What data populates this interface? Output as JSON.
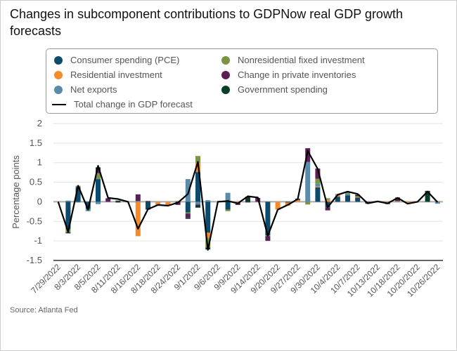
{
  "title": "Changes in subcomponent contributions to GDPNow real GDP growth forecasts",
  "source": "Source: Atlanta Fed",
  "chart_data": {
    "type": "bar",
    "stacked": true,
    "title": "Changes in subcomponent contributions to GDPNow real GDP growth forecasts",
    "xlabel": "",
    "ylabel": "Percentage points",
    "ylim": [
      -1.5,
      2
    ],
    "yticks": [
      2,
      1.5,
      1,
      0.5,
      0,
      -0.5,
      -1,
      -1.5
    ],
    "yticklabels": [
      "2",
      "1.5",
      "1",
      "0.5",
      "0",
      "-0.5",
      "-1",
      "-1.5"
    ],
    "grid": true,
    "legend_position": "top",
    "categories": [
      "7/29/2022",
      "",
      "8/3/2022",
      "",
      "8/5/2022",
      "",
      "8/11/2022",
      "",
      "8/16/2022",
      "",
      "8/18/2022",
      "",
      "8/24/2022",
      "",
      "9/1/2022",
      "",
      "9/6/2022",
      "",
      "9/9/2022",
      "",
      "9/14/2022",
      "",
      "9/20/2022",
      "",
      "9/27/2022",
      "",
      "9/30/2022",
      "",
      "10/4/2022",
      "",
      "10/7/2022",
      "",
      "10/13/2022",
      "",
      "10/18/2022",
      "",
      "10/20/2022",
      "",
      "10/26/2022"
    ],
    "series": [
      {
        "name": "Consumer spending (PCE)",
        "color": "#0e4a6b",
        "values": [
          0,
          -0.7,
          0.38,
          -0.18,
          0.58,
          0,
          0,
          0,
          0,
          -0.2,
          0,
          0,
          0,
          -0.27,
          0.76,
          -0.79,
          0,
          -0.2,
          0,
          0,
          0,
          -0.86,
          0,
          -0.02,
          0,
          0,
          0.37,
          -0.15,
          0.13,
          0.16,
          0.11,
          0,
          0,
          0,
          0,
          0,
          0,
          0,
          0
        ]
      },
      {
        "name": "Residential investment",
        "color": "#f58a2a",
        "values": [
          0,
          0,
          0.02,
          0,
          0,
          0,
          0,
          0,
          -0.88,
          0,
          -0.08,
          -0.1,
          0,
          0,
          0.23,
          -0.13,
          0,
          0,
          -0.02,
          0,
          0,
          0,
          -0.2,
          -0.08,
          0.03,
          0,
          0.02,
          0.05,
          0.05,
          0,
          0.03,
          0,
          0,
          -0.02,
          0,
          -0.04,
          0,
          0,
          0.02
        ]
      },
      {
        "name": "Net exports",
        "color": "#5a8ba8",
        "values": [
          0,
          0.03,
          -0.02,
          -0.06,
          -0.06,
          0,
          0,
          0,
          0.02,
          0,
          0,
          0,
          0,
          0.58,
          -0.07,
          0.04,
          0,
          0.23,
          0,
          0,
          0,
          0,
          0,
          0,
          0,
          1.02,
          0.07,
          0,
          0.02,
          0.05,
          0,
          0,
          0,
          -0.01,
          0,
          0,
          0,
          0,
          -0.05
        ]
      },
      {
        "name": "Nonresidential fixed investment",
        "color": "#7a9443",
        "values": [
          0,
          -0.08,
          0.01,
          0,
          0.15,
          0,
          0,
          0,
          0,
          0,
          0,
          0,
          0.02,
          -0.03,
          0.18,
          -0.25,
          0,
          -0.04,
          0,
          0,
          0,
          -0.02,
          0,
          0,
          0.02,
          -0.07,
          0.13,
          0.04,
          0,
          0.05,
          0,
          0,
          0,
          0,
          0.02,
          0,
          0,
          0,
          0
        ]
      },
      {
        "name": "Change in private inventories",
        "color": "#5a1f55",
        "values": [
          0,
          -0.01,
          0,
          0,
          0.1,
          0.09,
          -0.02,
          0,
          0.17,
          0.02,
          0,
          0,
          -0.08,
          -0.12,
          -0.03,
          0,
          0,
          0,
          -0.06,
          -0.01,
          0.1,
          -0.12,
          0,
          0,
          0.03,
          0.35,
          0.26,
          -0.07,
          0,
          0,
          0,
          -0.05,
          0,
          -0.03,
          0.09,
          0,
          0,
          0,
          0
        ]
      },
      {
        "name": "Government spending",
        "color": "#0a3d26",
        "values": [
          0,
          -0.01,
          0,
          0,
          0.05,
          0,
          0.03,
          0,
          0,
          0,
          0,
          0,
          0,
          -0.01,
          -0.05,
          -0.05,
          0,
          0,
          0,
          0.13,
          0,
          0,
          0,
          0,
          0,
          0,
          0,
          0,
          0,
          0,
          0.04,
          0,
          0,
          0,
          0,
          0,
          0,
          0.28,
          0
        ]
      }
    ],
    "line": {
      "name": "Total change in GDP forecast",
      "color": "#000000",
      "values": [
        0,
        -0.77,
        0.41,
        -0.2,
        0.92,
        0.1,
        0.07,
        0,
        -0.69,
        -0.19,
        -0.08,
        -0.1,
        -0.02,
        0.2,
        1.02,
        -1.23,
        0,
        0.02,
        -0.04,
        0.14,
        0.11,
        -0.87,
        -0.2,
        -0.08,
        0.07,
        1.3,
        0.84,
        -0.14,
        0.18,
        0.26,
        0.2,
        -0.04,
        0.01,
        -0.04,
        0.1,
        -0.05,
        0,
        0.26,
        -0.01
      ]
    }
  }
}
